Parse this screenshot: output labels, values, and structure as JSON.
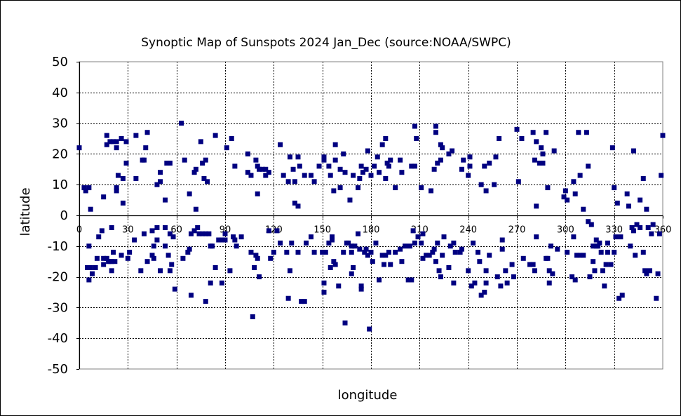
{
  "chart_data": {
    "type": "scatter",
    "title": "Synoptic Map of Sunspots 2024 Jan_Dec (source:NOAA/SWPC)",
    "xlabel": "longitude",
    "ylabel": "latitude",
    "xlim": [
      0,
      360
    ],
    "ylim": [
      -50,
      50
    ],
    "xticks": [
      0,
      30,
      60,
      90,
      120,
      150,
      180,
      210,
      240,
      270,
      300,
      330,
      360
    ],
    "yticks": [
      50,
      40,
      30,
      20,
      10,
      0,
      -10,
      -20,
      -30,
      -40,
      -50
    ],
    "grid": true,
    "marker_color": "#000080",
    "points": [
      [
        0,
        22
      ],
      [
        3,
        9
      ],
      [
        4,
        8
      ],
      [
        6,
        9
      ],
      [
        7,
        2
      ],
      [
        15,
        6
      ],
      [
        17,
        26
      ],
      [
        17,
        23
      ],
      [
        19,
        24
      ],
      [
        21,
        24
      ],
      [
        23,
        24
      ],
      [
        23,
        22
      ],
      [
        23,
        8
      ],
      [
        23,
        9
      ],
      [
        24,
        13
      ],
      [
        26,
        25
      ],
      [
        27,
        12
      ],
      [
        27,
        4
      ],
      [
        29,
        17
      ],
      [
        29,
        24
      ],
      [
        35,
        26
      ],
      [
        35,
        12
      ],
      [
        39,
        18
      ],
      [
        40,
        18
      ],
      [
        41,
        22
      ],
      [
        42,
        27
      ],
      [
        48,
        10
      ],
      [
        50,
        14
      ],
      [
        50,
        11
      ],
      [
        53,
        5
      ],
      [
        54,
        17
      ],
      [
        56,
        17
      ],
      [
        63,
        30
      ],
      [
        65,
        18
      ],
      [
        68,
        7
      ],
      [
        71,
        14
      ],
      [
        72,
        15
      ],
      [
        72,
        2
      ],
      [
        75,
        24
      ],
      [
        76,
        17
      ],
      [
        77,
        12
      ],
      [
        78,
        18
      ],
      [
        79,
        11
      ],
      [
        84,
        26
      ],
      [
        91,
        22
      ],
      [
        94,
        25
      ],
      [
        96,
        16
      ],
      [
        104,
        20
      ],
      [
        104,
        14
      ],
      [
        106,
        13
      ],
      [
        109,
        18
      ],
      [
        110,
        16
      ],
      [
        110,
        7
      ],
      [
        111,
        15
      ],
      [
        113,
        15
      ],
      [
        115,
        15
      ],
      [
        115,
        13
      ],
      [
        117,
        14
      ],
      [
        124,
        23
      ],
      [
        126,
        13
      ],
      [
        129,
        11
      ],
      [
        130,
        19
      ],
      [
        132,
        15
      ],
      [
        133,
        4
      ],
      [
        133,
        11
      ],
      [
        135,
        3
      ],
      [
        135,
        19
      ],
      [
        136,
        16
      ],
      [
        139,
        13
      ],
      [
        143,
        13
      ],
      [
        145,
        11
      ],
      [
        148,
        16
      ],
      [
        151,
        18
      ],
      [
        151,
        19
      ],
      [
        154,
        16
      ],
      [
        155,
        13
      ],
      [
        157,
        8
      ],
      [
        158,
        23
      ],
      [
        158,
        18
      ],
      [
        161,
        9
      ],
      [
        161,
        15
      ],
      [
        163,
        20
      ],
      [
        164,
        14
      ],
      [
        167,
        5
      ],
      [
        169,
        13
      ],
      [
        172,
        9
      ],
      [
        173,
        12
      ],
      [
        174,
        16
      ],
      [
        175,
        14
      ],
      [
        177,
        15
      ],
      [
        178,
        21
      ],
      [
        180,
        13
      ],
      [
        182,
        16
      ],
      [
        184,
        19
      ],
      [
        185,
        14
      ],
      [
        187,
        23
      ],
      [
        189,
        12
      ],
      [
        189,
        25
      ],
      [
        190,
        17
      ],
      [
        191,
        16
      ],
      [
        192,
        18
      ],
      [
        195,
        9
      ],
      [
        198,
        18
      ],
      [
        199,
        14
      ],
      [
        205,
        16
      ],
      [
        207,
        29
      ],
      [
        207,
        16
      ],
      [
        208,
        25
      ],
      [
        211,
        9
      ],
      [
        217,
        8
      ],
      [
        219,
        15
      ],
      [
        220,
        29
      ],
      [
        220,
        27
      ],
      [
        221,
        17
      ],
      [
        223,
        23
      ],
      [
        223,
        18
      ],
      [
        224,
        22
      ],
      [
        228,
        20
      ],
      [
        230,
        21
      ],
      [
        236,
        15
      ],
      [
        237,
        18
      ],
      [
        240,
        13
      ],
      [
        241,
        16
      ],
      [
        241,
        19
      ],
      [
        248,
        10
      ],
      [
        250,
        16
      ],
      [
        251,
        8
      ],
      [
        253,
        17
      ],
      [
        256,
        10
      ],
      [
        257,
        19
      ],
      [
        259,
        25
      ],
      [
        270,
        28
      ],
      [
        271,
        11
      ],
      [
        273,
        25
      ],
      [
        280,
        27
      ],
      [
        281,
        18
      ],
      [
        282,
        3
      ],
      [
        282,
        24
      ],
      [
        284,
        17
      ],
      [
        285,
        22
      ],
      [
        286,
        17
      ],
      [
        286,
        20
      ],
      [
        288,
        27
      ],
      [
        289,
        9
      ],
      [
        293,
        21
      ],
      [
        299,
        6
      ],
      [
        300,
        8
      ],
      [
        301,
        5
      ],
      [
        305,
        11
      ],
      [
        306,
        7
      ],
      [
        308,
        27
      ],
      [
        309,
        13
      ],
      [
        311,
        2
      ],
      [
        313,
        27
      ],
      [
        314,
        16
      ],
      [
        329,
        22
      ],
      [
        330,
        9
      ],
      [
        332,
        4
      ],
      [
        338,
        7
      ],
      [
        339,
        3
      ],
      [
        342,
        21
      ],
      [
        346,
        5
      ],
      [
        348,
        12
      ],
      [
        350,
        2
      ],
      [
        359,
        13
      ],
      [
        360,
        26
      ],
      [
        5,
        -17
      ],
      [
        6,
        -21
      ],
      [
        6,
        -10
      ],
      [
        7,
        -17
      ],
      [
        8,
        -19
      ],
      [
        10,
        -17
      ],
      [
        11,
        -14
      ],
      [
        12,
        -7
      ],
      [
        14,
        -5
      ],
      [
        15,
        -14
      ],
      [
        15,
        -16
      ],
      [
        17,
        -14
      ],
      [
        18,
        -15
      ],
      [
        19,
        -15
      ],
      [
        20,
        -15
      ],
      [
        20,
        -18
      ],
      [
        20,
        -4
      ],
      [
        21,
        -12
      ],
      [
        22,
        -15
      ],
      [
        26,
        -13
      ],
      [
        30,
        -14
      ],
      [
        31,
        -12
      ],
      [
        34,
        -8
      ],
      [
        38,
        -18
      ],
      [
        40,
        -6
      ],
      [
        42,
        -15
      ],
      [
        45,
        -5
      ],
      [
        45,
        -13
      ],
      [
        46,
        -10
      ],
      [
        46,
        -14
      ],
      [
        48,
        -4
      ],
      [
        48,
        -8
      ],
      [
        50,
        -18
      ],
      [
        53,
        -4
      ],
      [
        53,
        -10
      ],
      [
        55,
        -13
      ],
      [
        56,
        -6
      ],
      [
        56,
        -18
      ],
      [
        57,
        -16
      ],
      [
        58,
        -7
      ],
      [
        59,
        -24
      ],
      [
        64,
        -14
      ],
      [
        67,
        -12
      ],
      [
        68,
        -11
      ],
      [
        69,
        -26
      ],
      [
        69,
        -6
      ],
      [
        71,
        -5
      ],
      [
        73,
        -4
      ],
      [
        74,
        -6
      ],
      [
        76,
        -6
      ],
      [
        78,
        -6
      ],
      [
        78,
        -28
      ],
      [
        80,
        -6
      ],
      [
        81,
        -22
      ],
      [
        81,
        -10
      ],
      [
        82,
        -10
      ],
      [
        84,
        -17
      ],
      [
        86,
        -8
      ],
      [
        88,
        -8
      ],
      [
        88,
        -22
      ],
      [
        90,
        -6
      ],
      [
        90,
        -8
      ],
      [
        93,
        -18
      ],
      [
        95,
        -7
      ],
      [
        96,
        -8
      ],
      [
        97,
        -10
      ],
      [
        100,
        -7
      ],
      [
        106,
        -12
      ],
      [
        107,
        -33
      ],
      [
        108,
        -17
      ],
      [
        109,
        -13
      ],
      [
        110,
        -14
      ],
      [
        111,
        -20
      ],
      [
        117,
        -5
      ],
      [
        118,
        -14
      ],
      [
        120,
        -12
      ],
      [
        122,
        -5
      ],
      [
        124,
        -9
      ],
      [
        128,
        -12
      ],
      [
        129,
        -27
      ],
      [
        130,
        -18
      ],
      [
        131,
        -9
      ],
      [
        135,
        -12
      ],
      [
        137,
        -28
      ],
      [
        139,
        -28
      ],
      [
        140,
        -9
      ],
      [
        143,
        -7
      ],
      [
        145,
        -12
      ],
      [
        150,
        -12
      ],
      [
        151,
        -22
      ],
      [
        151,
        -25
      ],
      [
        152,
        -12
      ],
      [
        154,
        -9
      ],
      [
        155,
        -17
      ],
      [
        156,
        -7
      ],
      [
        156,
        -8
      ],
      [
        157,
        -15
      ],
      [
        158,
        -16
      ],
      [
        160,
        -23
      ],
      [
        163,
        -12
      ],
      [
        164,
        -35
      ],
      [
        165,
        -9
      ],
      [
        166,
        -9
      ],
      [
        168,
        -12
      ],
      [
        168,
        -19
      ],
      [
        168,
        -10
      ],
      [
        169,
        -17
      ],
      [
        170,
        -10
      ],
      [
        172,
        -6
      ],
      [
        173,
        -11
      ],
      [
        174,
        -23
      ],
      [
        174,
        -24
      ],
      [
        176,
        -12
      ],
      [
        177,
        -11
      ],
      [
        178,
        -13
      ],
      [
        179,
        -37
      ],
      [
        180,
        -12
      ],
      [
        181,
        -15
      ],
      [
        183,
        -9
      ],
      [
        185,
        -21
      ],
      [
        187,
        -13
      ],
      [
        188,
        -16
      ],
      [
        189,
        -13
      ],
      [
        191,
        -12
      ],
      [
        192,
        -16
      ],
      [
        195,
        -12
      ],
      [
        198,
        -11
      ],
      [
        199,
        -15
      ],
      [
        201,
        -10
      ],
      [
        203,
        -21
      ],
      [
        204,
        -10
      ],
      [
        205,
        -21
      ],
      [
        206,
        -5
      ],
      [
        207,
        -9
      ],
      [
        209,
        -7
      ],
      [
        211,
        -9
      ],
      [
        212,
        -6
      ],
      [
        212,
        -14
      ],
      [
        214,
        -13
      ],
      [
        216,
        -13
      ],
      [
        218,
        -12
      ],
      [
        219,
        -11
      ],
      [
        220,
        -15
      ],
      [
        221,
        -9
      ],
      [
        222,
        -18
      ],
      [
        223,
        -20
      ],
      [
        224,
        -13
      ],
      [
        225,
        -7
      ],
      [
        228,
        -17
      ],
      [
        229,
        -10
      ],
      [
        231,
        -22
      ],
      [
        231,
        -9
      ],
      [
        232,
        -12
      ],
      [
        235,
        -12
      ],
      [
        236,
        -11
      ],
      [
        240,
        -18
      ],
      [
        242,
        -23
      ],
      [
        243,
        -9
      ],
      [
        244,
        -22
      ],
      [
        246,
        -12
      ],
      [
        247,
        -15
      ],
      [
        248,
        -26
      ],
      [
        250,
        -25
      ],
      [
        251,
        -22
      ],
      [
        251,
        -18
      ],
      [
        253,
        -13
      ],
      [
        258,
        -20
      ],
      [
        260,
        -23
      ],
      [
        261,
        -11
      ],
      [
        261,
        -8
      ],
      [
        263,
        -18
      ],
      [
        264,
        -22
      ],
      [
        267,
        -16
      ],
      [
        268,
        -20
      ],
      [
        274,
        -14
      ],
      [
        278,
        -16
      ],
      [
        280,
        -16
      ],
      [
        281,
        -18
      ],
      [
        282,
        -7
      ],
      [
        288,
        -14
      ],
      [
        289,
        -14
      ],
      [
        290,
        -18
      ],
      [
        290,
        -22
      ],
      [
        291,
        -10
      ],
      [
        292,
        -19
      ],
      [
        295,
        -11
      ],
      [
        301,
        -12
      ],
      [
        304,
        -20
      ],
      [
        305,
        -7
      ],
      [
        306,
        -21
      ],
      [
        307,
        -13
      ],
      [
        309,
        -13
      ],
      [
        311,
        -13
      ],
      [
        314,
        -2
      ],
      [
        315,
        -20
      ],
      [
        316,
        -3
      ],
      [
        317,
        -10
      ],
      [
        317,
        -15
      ],
      [
        318,
        -18
      ],
      [
        319,
        -8
      ],
      [
        319,
        -10
      ],
      [
        320,
        -10
      ],
      [
        321,
        -9
      ],
      [
        322,
        -12
      ],
      [
        323,
        -18
      ],
      [
        324,
        -23
      ],
      [
        325,
        -16
      ],
      [
        326,
        -12
      ],
      [
        326,
        -9
      ],
      [
        328,
        -16
      ],
      [
        330,
        -12
      ],
      [
        331,
        -7
      ],
      [
        333,
        -27
      ],
      [
        334,
        -7
      ],
      [
        335,
        -26
      ],
      [
        340,
        -10
      ],
      [
        341,
        -4
      ],
      [
        342,
        -5
      ],
      [
        343,
        -13
      ],
      [
        344,
        -3
      ],
      [
        346,
        -4
      ],
      [
        348,
        -12
      ],
      [
        349,
        -18
      ],
      [
        350,
        -19
      ],
      [
        351,
        -4
      ],
      [
        352,
        -18
      ],
      [
        353,
        -6
      ],
      [
        354,
        -3
      ],
      [
        356,
        -27
      ],
      [
        357,
        -19
      ],
      [
        358,
        -6
      ]
    ]
  }
}
